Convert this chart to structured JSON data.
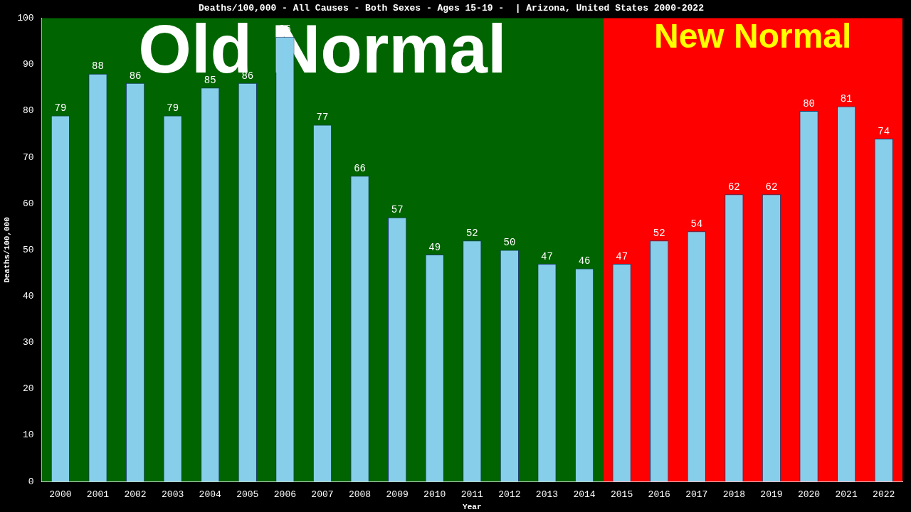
{
  "chart_data": {
    "type": "bar",
    "title": "Deaths/100,000 - All Causes - Both Sexes - Ages 15-19 -  | Arizona, United States 2000-2022",
    "xlabel": "Year",
    "ylabel": "Deaths/100,000",
    "categories": [
      "2000",
      "2001",
      "2002",
      "2003",
      "2004",
      "2005",
      "2006",
      "2007",
      "2008",
      "2009",
      "2010",
      "2011",
      "2012",
      "2013",
      "2014",
      "2015",
      "2016",
      "2017",
      "2018",
      "2019",
      "2020",
      "2021",
      "2022"
    ],
    "values": [
      79,
      88,
      86,
      79,
      85,
      86,
      96,
      77,
      66,
      57,
      49,
      52,
      50,
      47,
      46,
      47,
      52,
      54,
      62,
      62,
      80,
      81,
      74
    ],
    "color": "#87ceeb",
    "ylim": [
      0,
      100
    ],
    "yticks": [
      0,
      10,
      20,
      30,
      40,
      50,
      60,
      70,
      80,
      90,
      100
    ],
    "data_labels": true,
    "grid": false,
    "legend": false,
    "bands": [
      {
        "axis": "x",
        "from": "2000",
        "to": "2014",
        "label": "Old Normal",
        "color": "#006400"
      },
      {
        "axis": "x",
        "from": "2015",
        "to": "2022",
        "label": "New Normal",
        "color": "#ff0000"
      }
    ]
  }
}
